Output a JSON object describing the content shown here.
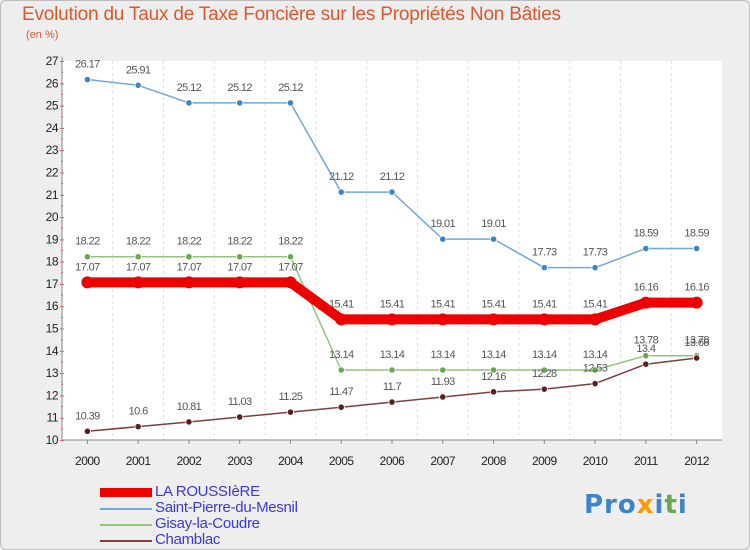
{
  "header": {
    "title": "Evolution du Taux de Taxe Foncière sur les Propriétés Non Bâties",
    "subtitle": "(en %)"
  },
  "logo": {
    "p1": "Pro",
    "x": "x",
    "i1": "i",
    "t": "t",
    "i2": "i"
  },
  "chart_data": {
    "type": "line",
    "title": "Evolution du Taux de Taxe Foncière sur les Propriétés Non Bâties",
    "ylabel": "(en %)",
    "xlabel": "",
    "ylim": [
      10,
      27
    ],
    "yticks": [
      "10",
      "11",
      "12",
      "13",
      "14",
      "15",
      "16",
      "17",
      "18",
      "19",
      "20",
      "21",
      "22",
      "23",
      "24",
      "25",
      "26",
      "27"
    ],
    "categories": [
      "2000",
      "2001",
      "2002",
      "2003",
      "2004",
      "2005",
      "2006",
      "2007",
      "2008",
      "2009",
      "2010",
      "2011",
      "2012"
    ],
    "legend_position": "bottom-left",
    "series": [
      {
        "name": "LA ROUSSIèRE",
        "color": "#ee0000",
        "thick": true,
        "values": [
          17.07,
          17.07,
          17.07,
          17.07,
          17.07,
          15.41,
          15.41,
          15.41,
          15.41,
          15.41,
          15.41,
          16.16,
          16.16
        ],
        "labels": [
          "17.07",
          "17.07",
          "17.07",
          "17.07",
          "17.07",
          "15.41",
          "15.41",
          "15.41",
          "15.41",
          "15.41",
          "15.41",
          "16.16",
          "16.16"
        ]
      },
      {
        "name": "Saint-Pierre-du-Mesnil",
        "color": "#6fa8dc",
        "marker": "#3d85c6",
        "values": [
          26.17,
          25.91,
          25.12,
          25.12,
          25.12,
          21.12,
          21.12,
          19.01,
          19.01,
          17.73,
          17.73,
          18.59,
          18.59
        ],
        "labels": [
          "26.17",
          "25.91",
          "25.12",
          "25.12",
          "25.12",
          "21.12",
          "21.12",
          "19.01",
          "19.01",
          "17.73",
          "17.73",
          "18.59",
          "18.59"
        ]
      },
      {
        "name": "Gisay-la-Coudre",
        "color": "#93c47d",
        "marker": "#6aa84f",
        "values": [
          18.22,
          18.22,
          18.22,
          18.22,
          18.22,
          13.14,
          13.14,
          13.14,
          13.14,
          13.14,
          13.14,
          13.78,
          13.78
        ],
        "labels": [
          "18.22",
          "18.22",
          "18.22",
          "18.22",
          "18.22",
          "13.14",
          "13.14",
          "13.14",
          "13.14",
          "13.14",
          "13.14",
          "13.78",
          "13.78"
        ]
      },
      {
        "name": "Chamblac",
        "color": "#7f3f3f",
        "marker": "#5b1f1f",
        "values": [
          10.39,
          10.6,
          10.81,
          11.03,
          11.25,
          11.47,
          11.7,
          11.93,
          12.16,
          12.28,
          12.53,
          13.4,
          13.68
        ],
        "labels": [
          "10.39",
          "10.6",
          "10.81",
          "11.03",
          "11.25",
          "11.47",
          "11.7",
          "11.93",
          "12.16",
          "12.28",
          "12.53",
          "13.4",
          "13.68"
        ]
      }
    ]
  }
}
